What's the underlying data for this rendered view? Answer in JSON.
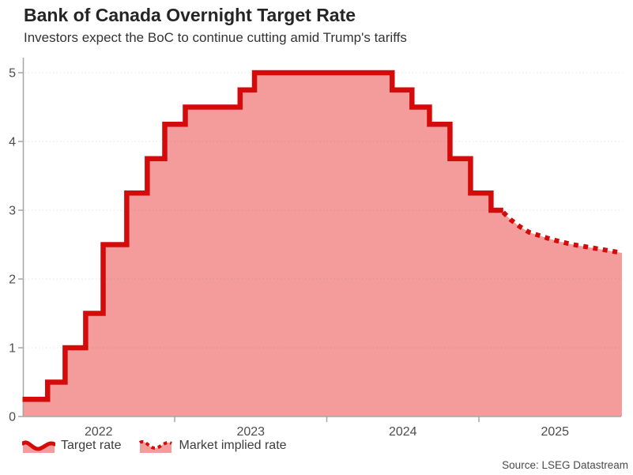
{
  "header": {
    "title": "Bank of Canada Overnight Target Rate",
    "subtitle": "Investors expect the BoC to continue cutting amid Trump's tariffs"
  },
  "legend": [
    {
      "label": "Target rate",
      "style": "solid"
    },
    {
      "label": "Market implied rate",
      "style": "dotted"
    }
  ],
  "source_note": "Source: LSEG Datastream",
  "colors": {
    "line_red": "#d40b0b",
    "area_pink": "#f49c9c",
    "axis_gray": "#a6a6a6",
    "grid_gray": "rgba(80,80,80,0.15)",
    "tick_text": "#4d4d4d",
    "title_text": "#252525",
    "subtitle_text": "#333333",
    "legend_text": "#3d3d3d",
    "source_text": "#4a4a4a"
  },
  "chart_data": {
    "type": "area",
    "title": "Bank of Canada Overnight Target Rate",
    "subtitle": "Investors expect the BoC to continue cutting amid Trump's tariffs",
    "xlabel": "",
    "ylabel": "",
    "grid": "horizontal-dotted",
    "legend_position": "bottom-left",
    "x_axis": {
      "tick_years": [
        2022,
        2023,
        2024,
        2025
      ],
      "range": [
        2022.0,
        2025.94
      ]
    },
    "y_axis": {
      "ticks": [
        0,
        1,
        2,
        3,
        4,
        5
      ],
      "range": [
        0,
        5.2
      ]
    },
    "series": [
      {
        "name": "Target rate",
        "style": "step-solid",
        "points": [
          [
            2022.0,
            0.25
          ],
          [
            2022.165,
            0.5
          ],
          [
            2022.28,
            1.0
          ],
          [
            2022.415,
            1.5
          ],
          [
            2022.53,
            2.5
          ],
          [
            2022.685,
            3.25
          ],
          [
            2022.82,
            3.75
          ],
          [
            2022.935,
            4.25
          ],
          [
            2023.07,
            4.5
          ],
          [
            2023.43,
            4.75
          ],
          [
            2023.525,
            5.0
          ],
          [
            2024.43,
            4.75
          ],
          [
            2024.56,
            4.5
          ],
          [
            2024.675,
            4.25
          ],
          [
            2024.81,
            3.75
          ],
          [
            2024.945,
            3.25
          ],
          [
            2025.08,
            3.0
          ]
        ],
        "end_x": 2025.16
      },
      {
        "name": "Market implied rate",
        "style": "dotted",
        "points": [
          [
            2025.16,
            2.97
          ],
          [
            2025.21,
            2.86
          ],
          [
            2025.27,
            2.76
          ],
          [
            2025.33,
            2.68
          ],
          [
            2025.4,
            2.63
          ],
          [
            2025.47,
            2.58
          ],
          [
            2025.54,
            2.54
          ],
          [
            2025.62,
            2.5
          ],
          [
            2025.7,
            2.47
          ],
          [
            2025.78,
            2.44
          ],
          [
            2025.86,
            2.41
          ],
          [
            2025.94,
            2.38
          ]
        ]
      }
    ]
  }
}
